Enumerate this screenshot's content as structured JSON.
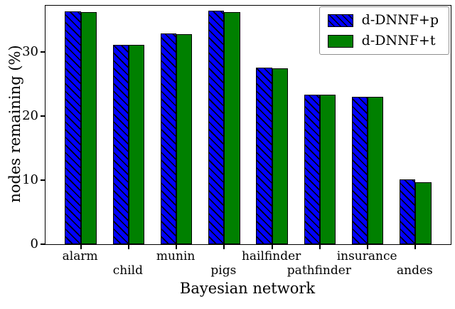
{
  "figure": {
    "background": "#ffffff"
  },
  "chart_data": {
    "type": "bar",
    "title": "",
    "xlabel": "Bayesian network",
    "ylabel": "nodes remaining (%)",
    "categories": [
      "alarm",
      "child",
      "munin",
      "pigs",
      "hailfinder",
      "pathfinder",
      "insurance",
      "andes"
    ],
    "series": [
      {
        "name": "d-DNNF+p",
        "color": "#0000ff",
        "hatch": "\\",
        "values": [
          36.3,
          31.1,
          32.9,
          36.4,
          27.5,
          23.3,
          23.0,
          10.1
        ]
      },
      {
        "name": "d-DNNF+t",
        "color": "#008000",
        "hatch": "",
        "values": [
          36.2,
          31.1,
          32.8,
          36.2,
          27.4,
          23.3,
          23.0,
          9.7
        ]
      }
    ],
    "ylim": [
      0,
      37.2
    ],
    "yticks": [
      0,
      10,
      20,
      30
    ],
    "grid": false,
    "legend_position": "upper right",
    "bar_edge_color": "#000000",
    "x_labels_staggered": true
  }
}
